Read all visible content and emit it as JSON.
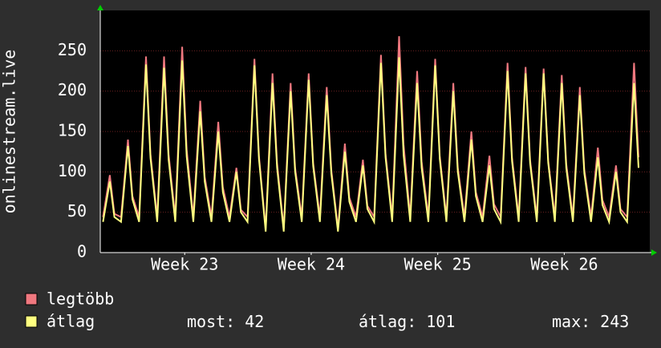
{
  "chart_data": {
    "type": "line",
    "ylabel": "onlinestream.live",
    "xlim": [
      0,
      30.4
    ],
    "ylim": [
      0,
      300
    ],
    "xticks": [
      {
        "value": 4.67,
        "label": "Week 23"
      },
      {
        "value": 11.67,
        "label": "Week 24"
      },
      {
        "value": 18.67,
        "label": "Week 25"
      },
      {
        "value": 25.67,
        "label": "Week 26"
      }
    ],
    "yticks": [
      0,
      50,
      100,
      150,
      200,
      250
    ],
    "grid": true,
    "x": [
      0.15,
      0.53,
      0.78,
      1.15,
      1.53,
      1.78,
      2.15,
      2.53,
      2.78,
      3.15,
      3.53,
      3.78,
      4.15,
      4.53,
      4.78,
      5.15,
      5.53,
      5.78,
      6.15,
      6.53,
      6.78,
      7.15,
      7.53,
      7.78,
      8.15,
      8.53,
      8.78,
      9.15,
      9.53,
      9.78,
      10.15,
      10.53,
      10.78,
      11.15,
      11.53,
      11.78,
      12.15,
      12.53,
      12.78,
      13.15,
      13.53,
      13.78,
      14.15,
      14.53,
      14.78,
      15.15,
      15.53,
      15.78,
      16.15,
      16.53,
      16.78,
      17.15,
      17.53,
      17.78,
      18.15,
      18.53,
      18.78,
      19.15,
      19.53,
      19.78,
      20.15,
      20.53,
      20.78,
      21.15,
      21.53,
      21.78,
      22.15,
      22.53,
      22.78,
      23.15,
      23.53,
      23.78,
      24.15,
      24.53,
      24.78,
      25.15,
      25.53,
      25.78,
      26.15,
      26.53,
      26.78,
      27.15,
      27.53,
      27.78,
      28.15,
      28.53,
      28.78,
      29.15,
      29.53,
      29.78
    ],
    "series": [
      {
        "name": "legtöbb",
        "color": "#f0787f",
        "values": [
          44,
          96,
          48,
          44,
          140,
          70,
          44,
          243,
          122,
          44,
          243,
          122,
          44,
          255,
          128,
          44,
          188,
          94,
          44,
          162,
          81,
          44,
          105,
          53,
          44,
          240,
          120,
          30,
          222,
          111,
          30,
          210,
          105,
          44,
          222,
          111,
          44,
          205,
          103,
          30,
          135,
          68,
          44,
          115,
          58,
          44,
          245,
          123,
          44,
          268,
          134,
          44,
          225,
          113,
          44,
          240,
          120,
          44,
          210,
          105,
          44,
          150,
          75,
          44,
          120,
          60,
          44,
          235,
          118,
          44,
          230,
          115,
          44,
          228,
          114,
          44,
          220,
          110,
          44,
          205,
          103,
          44,
          130,
          65,
          44,
          108,
          54,
          44,
          235,
          118
        ]
      },
      {
        "name": "átlag",
        "color": "#ffff80",
        "values": [
          38,
          88,
          44,
          38,
          132,
          66,
          38,
          233,
          117,
          38,
          229,
          115,
          38,
          238,
          119,
          38,
          175,
          88,
          38,
          150,
          75,
          38,
          100,
          50,
          38,
          232,
          116,
          26,
          210,
          105,
          26,
          200,
          100,
          38,
          214,
          107,
          38,
          195,
          98,
          26,
          125,
          63,
          38,
          108,
          54,
          38,
          235,
          118,
          38,
          242,
          121,
          38,
          210,
          105,
          38,
          232,
          116,
          38,
          200,
          100,
          38,
          140,
          70,
          38,
          108,
          54,
          38,
          225,
          113,
          38,
          222,
          111,
          38,
          222,
          111,
          38,
          210,
          105,
          38,
          195,
          98,
          38,
          118,
          59,
          38,
          100,
          50,
          38,
          210,
          105
        ]
      }
    ],
    "stats": [
      {
        "label": "most:",
        "value": 42
      },
      {
        "label": "átlag:",
        "value": 101
      },
      {
        "label": "max:",
        "value": 243
      }
    ]
  }
}
